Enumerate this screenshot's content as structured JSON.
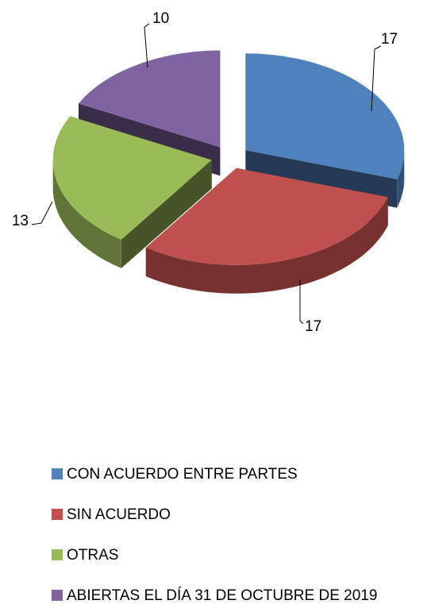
{
  "chart_data": {
    "type": "pie",
    "categories": [
      "CON ACUERDO ENTRE PARTES",
      "SIN ACUERDO",
      "OTRAS",
      "ABIERTAS EL DÍA 31 DE OCTUBRE DE 2019"
    ],
    "values": [
      17,
      17,
      13,
      10
    ],
    "colors": [
      "#4f81bd",
      "#c0504d",
      "#9bbb59",
      "#8064a2"
    ]
  }
}
